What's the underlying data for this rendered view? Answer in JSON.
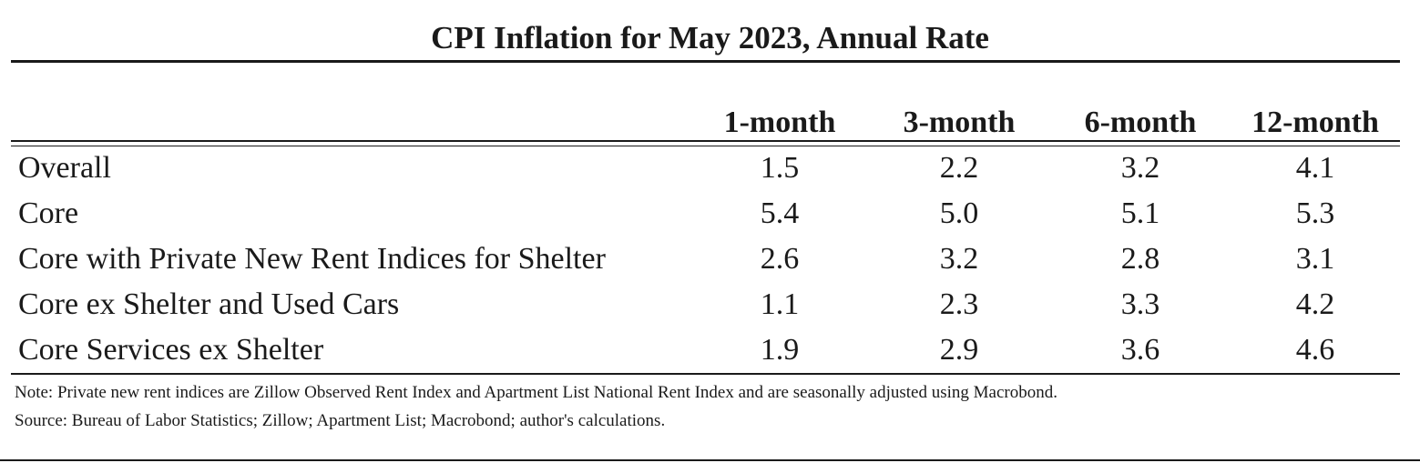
{
  "chart_data": {
    "type": "table",
    "title": "CPI Inflation for May 2023, Annual Rate",
    "columns": [
      "1-month",
      "3-month",
      "6-month",
      "12-month"
    ],
    "rows": [
      {
        "label": "Overall",
        "values": [
          "1.5",
          "2.2",
          "3.2",
          "4.1"
        ]
      },
      {
        "label": "Core",
        "values": [
          "5.4",
          "5.0",
          "5.1",
          "5.3"
        ]
      },
      {
        "label": "Core with Private New Rent Indices for Shelter",
        "values": [
          "2.6",
          "3.2",
          "2.8",
          "3.1"
        ]
      },
      {
        "label": "Core ex Shelter and Used Cars",
        "values": [
          "1.1",
          "2.3",
          "3.3",
          "4.2"
        ]
      },
      {
        "label": "Core Services ex Shelter",
        "values": [
          "1.9",
          "2.9",
          "3.6",
          "4.6"
        ]
      }
    ],
    "note": "Note: Private new rent indices are Zillow Observed Rent Index and Apartment List National Rent Index and are seasonally adjusted using Macrobond.",
    "source": "Source: Bureau of Labor Statistics; Zillow; Apartment List; Macrobond; author's calculations."
  }
}
